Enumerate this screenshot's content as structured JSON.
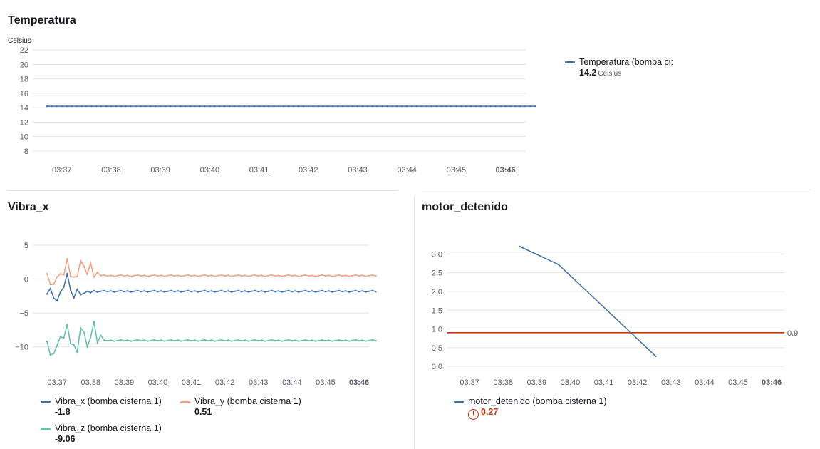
{
  "panels": {
    "temperatura": {
      "title": "Temperatura",
      "unit_label": "Celsius",
      "legend": [
        {
          "name": "Temperatura (bomba ci:",
          "value": "14.2",
          "unit": "Celsius",
          "color": "#3f6ea8"
        }
      ]
    },
    "vibra_x": {
      "title": "Vibra_x",
      "legend": [
        {
          "name": "Vibra_x (bomba cisterna 1)",
          "value": "-1.8",
          "color": "#3f6ea8"
        },
        {
          "name": "Vibra_y (bomba cisterna 1)",
          "value": "0.51",
          "color": "#f2a280"
        },
        {
          "name": "Vibra_z (bomba cisterna 1)",
          "value": "-9.06",
          "color": "#5fc3a0"
        }
      ]
    },
    "motor": {
      "title": "motor_detenido",
      "legend": [
        {
          "name": "motor_detenido (bomba cisterna 1)",
          "value": "0.27",
          "color": "#3f6ea8"
        }
      ],
      "threshold_label": "0.9"
    }
  },
  "chart_data": [
    {
      "type": "line",
      "title": "Temperatura",
      "ylabel": "Celsius",
      "ylim": [
        7,
        22.5
      ],
      "yticks": [
        22,
        20,
        18,
        16,
        14,
        12,
        10,
        8
      ],
      "xticks": [
        "03:37",
        "03:38",
        "03:39",
        "03:40",
        "03:41",
        "03:42",
        "03:43",
        "03:44",
        "03:45",
        "03:46"
      ],
      "xrange_minutes": [
        0,
        10
      ],
      "grid": true,
      "legend_position": "right",
      "series": [
        {
          "name": "Temperatura (bomba ci:",
          "color": "#3f6ea8",
          "constant": 14.2,
          "x_start": 0,
          "x_end": 9.9
        }
      ]
    },
    {
      "type": "line",
      "title": "Vibra_x",
      "ylim": [
        -13.5,
        7
      ],
      "yticks": [
        5,
        0,
        -5,
        -10
      ],
      "ytick_labels": [
        "5",
        "0",
        "−5",
        "−10"
      ],
      "xticks": [
        "03:37",
        "03:38",
        "03:39",
        "03:40",
        "03:41",
        "03:42",
        "03:43",
        "03:44",
        "03:45",
        "03:46"
      ],
      "grid": true,
      "legend_position": "bottom",
      "series": [
        {
          "name": "Vibra_x (bomba cisterna 1)",
          "color": "#3f6ea8",
          "early": [
            -2.2,
            -1.4,
            -2.8,
            -3.2,
            -1.9,
            -1.2,
            0.8,
            -1.6,
            -2.8,
            -1.5,
            -2.3,
            -2.1,
            -1.8,
            -2.0,
            -1.7
          ],
          "steady": -1.8
        },
        {
          "name": "Vibra_y (bomba cisterna 1)",
          "color": "#f2a280",
          "early": [
            0.8,
            -0.8,
            -0.8,
            0.3,
            0.8,
            0.6,
            3.0,
            0.4,
            0.3,
            0.4,
            2.7,
            1.9,
            0.7,
            2.4,
            0.3,
            1.0
          ],
          "steady": 0.51
        },
        {
          "name": "Vibra_z (bomba cisterna 1)",
          "color": "#5fc3a0",
          "early": [
            -9.2,
            -11.2,
            -11.0,
            -9.8,
            -8.5,
            -8.7,
            -6.7,
            -9.5,
            -9.7,
            -10.8,
            -7.2,
            -7.8,
            -10.0,
            -8.6,
            -6.3,
            -9.4,
            -8.3,
            -9.0
          ],
          "steady": -9.06
        }
      ]
    },
    {
      "type": "line",
      "title": "motor_detenido",
      "ylim": [
        -0.15,
        3.35
      ],
      "yticks": [
        3.0,
        2.5,
        2.0,
        1.5,
        1.0,
        0.5,
        0.0
      ],
      "ytick_labels": [
        "3.0",
        "2.5",
        "2.0",
        "1.5",
        "1.0",
        "0.5",
        "0.0"
      ],
      "xticks": [
        "03:37",
        "03:38",
        "03:39",
        "03:40",
        "03:41",
        "03:42",
        "03:43",
        "03:44",
        "03:45",
        "03:46"
      ],
      "grid": true,
      "legend_position": "bottom",
      "threshold": {
        "value": 0.9,
        "color": "#d13212"
      },
      "series": [
        {
          "name": "motor_detenido (bomba cisterna 1)",
          "color": "#3f6ea8",
          "points": [
            [
              1.8,
              3.2
            ],
            [
              2.95,
              2.72
            ],
            [
              5.85,
              0.27
            ]
          ]
        }
      ]
    }
  ]
}
